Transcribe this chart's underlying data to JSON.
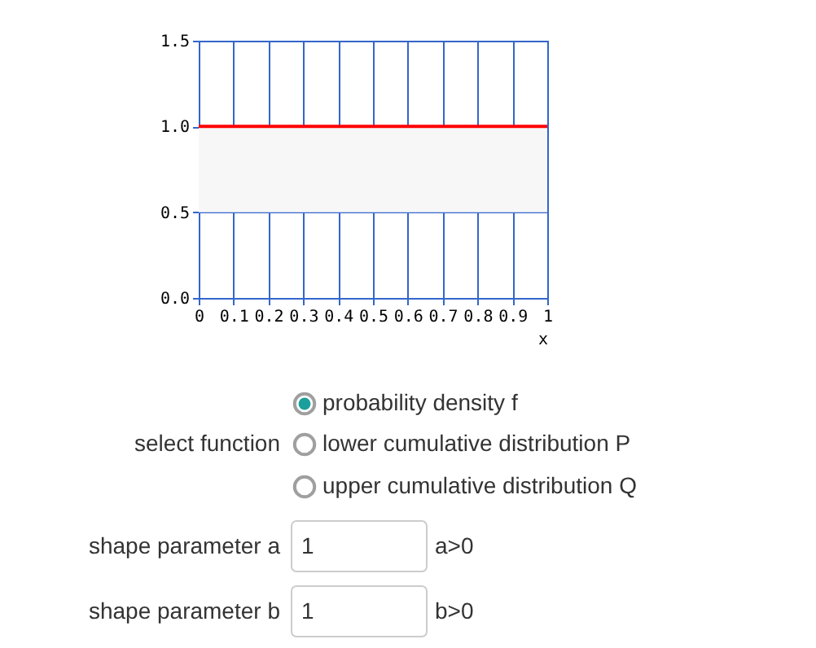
{
  "chart_data": {
    "type": "line",
    "x": [
      0,
      1
    ],
    "series": [
      {
        "color": "#ff0000",
        "values": [
          1,
          1
        ]
      }
    ],
    "xlabel": "x",
    "xlim": [
      0,
      1
    ],
    "xticks": [
      0,
      0.1,
      0.2,
      0.3,
      0.4,
      0.5,
      0.6,
      0.7,
      0.8,
      0.9,
      1
    ],
    "ylim": [
      0,
      1.5
    ],
    "yticks": [
      {
        "value": 0,
        "label": "0.0"
      },
      {
        "value": 0.5,
        "label": "0.5"
      },
      {
        "value": 1,
        "label": "1.0"
      },
      {
        "value": 1.5,
        "label": "1.5"
      }
    ],
    "bands": [
      {
        "axis": "y",
        "from": 0.5,
        "to": 1.0,
        "color": "#f7f7f7"
      }
    ],
    "grid": true,
    "annotations": [
      "probability density f",
      "select function",
      "lower cumulative distribution P",
      "upper cumulative distribution Q",
      "shape parameter a",
      "1",
      "a>0",
      "shape parameter b",
      "1",
      "b>0"
    ]
  }
}
